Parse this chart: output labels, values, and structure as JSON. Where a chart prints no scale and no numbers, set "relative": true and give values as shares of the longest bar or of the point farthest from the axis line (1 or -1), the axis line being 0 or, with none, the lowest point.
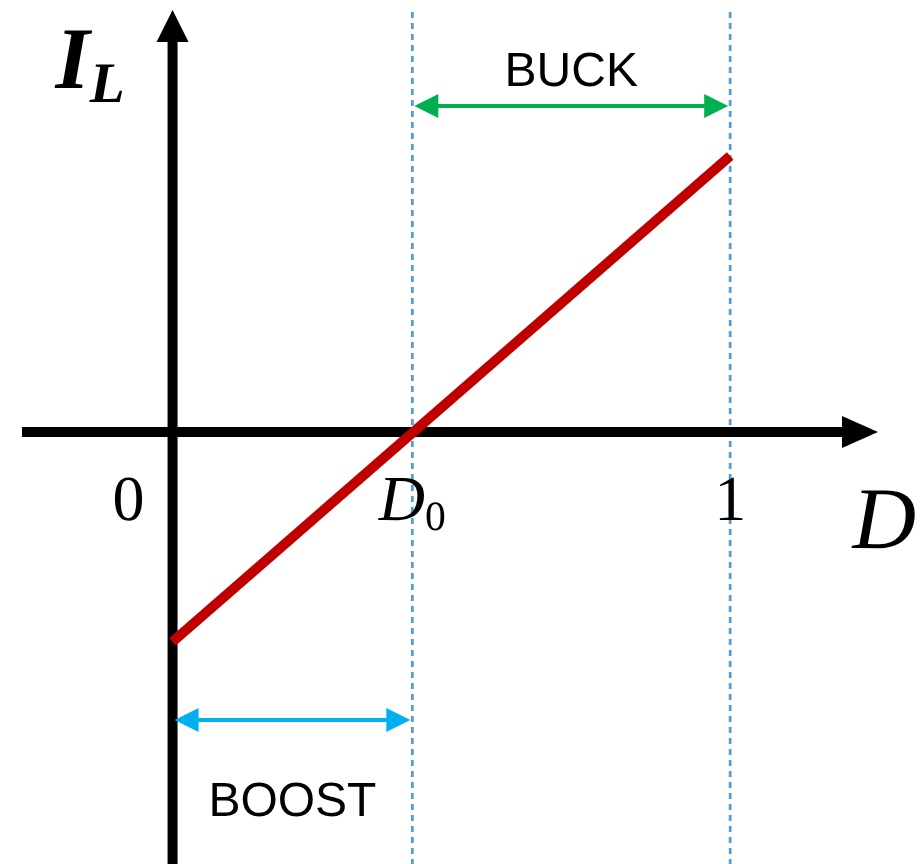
{
  "chart_data": {
    "type": "line",
    "relative": true,
    "xlabel": "D",
    "ylabel": "I$_{L}$",
    "xlim": [
      -0.27,
      1.24
    ],
    "xticks": [
      0,
      {
        "value": 0.43,
        "label": "D$_{0}$"
      },
      1
    ],
    "series": [
      {
        "x": [
          0,
          1
        ],
        "values": [
          -0.76,
          1
        ],
        "color": "#c00000"
      }
    ],
    "marker": "none",
    "line_style": "solid",
    "ref_lines": [
      {
        "axis": "x",
        "value": 0.43,
        "label": null,
        "color": "#5b9bd5",
        "line_style": "dashed"
      },
      {
        "axis": "x",
        "value": 1,
        "label": null,
        "color": "#5b9bd5",
        "line_style": "dashed"
      }
    ],
    "annotations": [
      "BUCK",
      "BOOST"
    ]
  }
}
